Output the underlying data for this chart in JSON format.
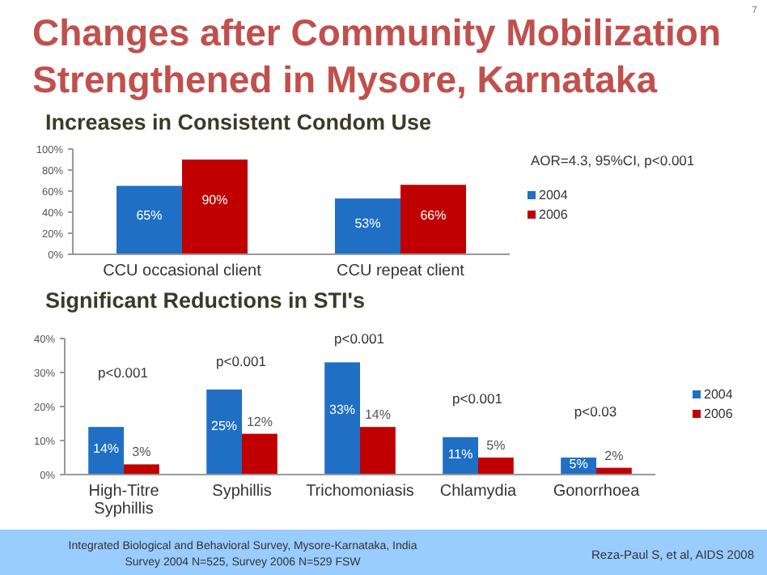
{
  "chart_data": [
    {
      "type": "bar",
      "title": "Changes after Community Mobilization Strengthened in Mysore, Karnataka",
      "subtitle": "Increases in Consistent Condom Use",
      "categories": [
        "CCU occasional client",
        "CCU repeat client"
      ],
      "series": [
        {
          "name": "2004",
          "color": "#1f6fc5",
          "values": [
            65,
            53
          ],
          "value_labels": [
            "65%",
            "53%"
          ]
        },
        {
          "name": "2006",
          "color": "#c00000",
          "values": [
            90,
            66
          ],
          "value_labels": [
            "90%",
            "66%"
          ]
        }
      ],
      "ylim": [
        0,
        100
      ],
      "yticks": [
        {
          "value": 0,
          "label": "0%"
        },
        {
          "value": 20,
          "label": "20%"
        },
        {
          "value": 40,
          "label": "40%"
        },
        {
          "value": 60,
          "label": "60%"
        },
        {
          "value": 80,
          "label": "80%"
        },
        {
          "value": 100,
          "label": "100%"
        }
      ],
      "grid": false,
      "legend": "right",
      "annotations": [
        "AOR=4.3, 95%CI, p<0.001",
        "7"
      ]
    },
    {
      "type": "bar",
      "title": "Significant Reductions in STI's",
      "categories": [
        "High-Titre Syphillis",
        "Syphillis",
        "Trichomoniasis",
        "Chlamydia",
        "Gonorrhoea"
      ],
      "series": [
        {
          "name": "2004",
          "color": "#1f6fc5",
          "values": [
            14,
            25,
            33,
            11,
            5
          ],
          "value_labels": [
            "14%",
            "25%",
            "33%",
            "11%",
            "5%"
          ]
        },
        {
          "name": "2006",
          "color": "#c00000",
          "values": [
            3,
            12,
            14,
            5,
            2
          ],
          "value_labels": [
            "3%",
            "12%",
            "14%",
            "5%",
            "2%"
          ]
        }
      ],
      "ylim": [
        0,
        40
      ],
      "yticks": [
        {
          "value": 0,
          "label": "0%"
        },
        {
          "value": 10,
          "label": "10%"
        },
        {
          "value": 20,
          "label": "20%"
        },
        {
          "value": 30,
          "label": "30%"
        },
        {
          "value": 40,
          "label": "40%"
        }
      ],
      "grid": false,
      "legend": "right",
      "annotations": [
        "p<0.001",
        "p<0.001",
        "p<0.001",
        "p<0.001",
        "p<0.03",
        "Integrated Biological and Behavioral Survey, Mysore-Karnataka, India",
        "Survey 2004 N=525, Survey 2006 N=529 FSW",
        "Reza-Paul S, et al, AIDS 2008"
      ]
    }
  ]
}
